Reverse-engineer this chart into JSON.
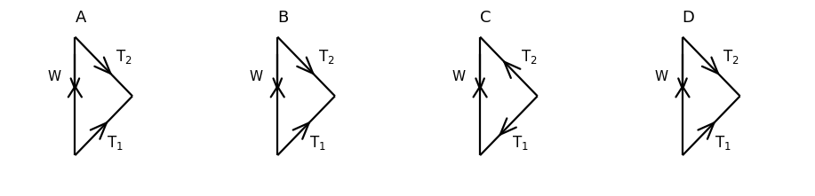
{
  "background": "#ffffff",
  "color": "#000000",
  "lw": 1.6,
  "diagrams": [
    {
      "label": "A",
      "t2_inward": false,
      "t1_inward": false,
      "t2_steep": true,
      "t1_steep": false
    },
    {
      "label": "B",
      "t2_inward": false,
      "t1_inward": false,
      "t2_steep": true,
      "t1_steep": false
    },
    {
      "label": "C",
      "t2_inward": true,
      "t1_inward": true,
      "t2_steep": false,
      "t1_steep": false
    },
    {
      "label": "D",
      "t2_inward": false,
      "t1_inward": false,
      "t2_steep": false,
      "t1_steep": false
    }
  ],
  "fig_width": 9.17,
  "fig_height": 2.21,
  "dpi": 100,
  "label_fs": 12,
  "sub_fs": 8,
  "wlabel_fs": 11
}
